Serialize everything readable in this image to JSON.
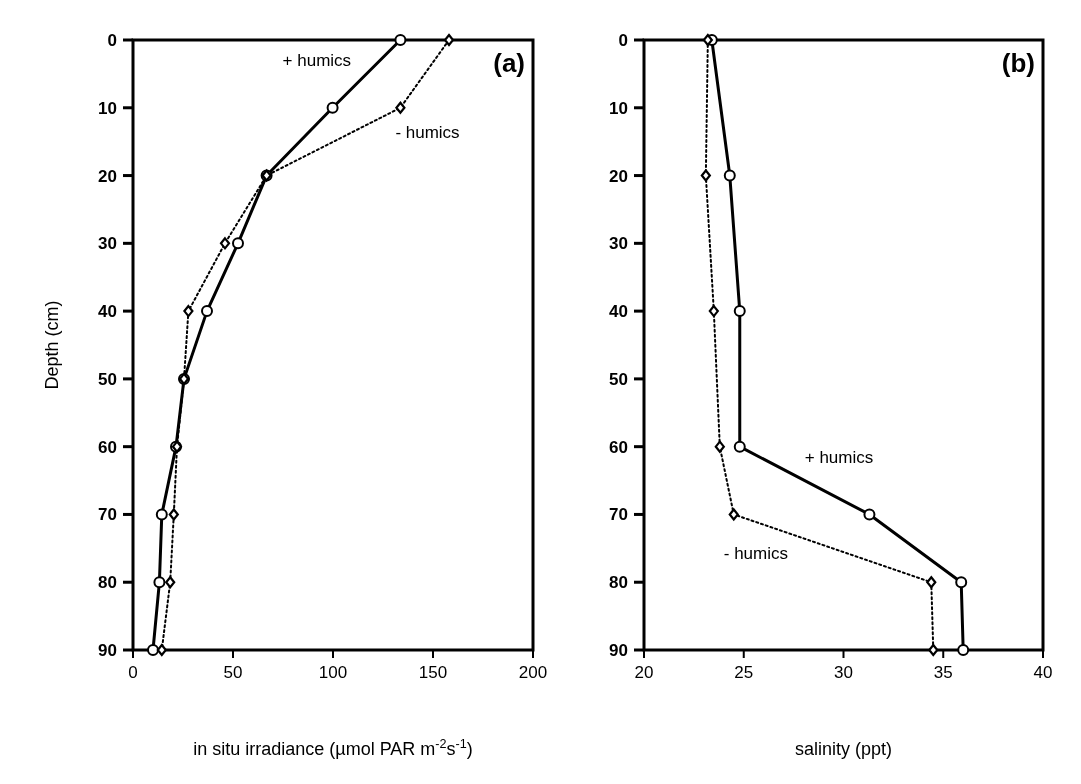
{
  "chart_data": [
    {
      "type": "line",
      "title": "(a)",
      "xlabel": "in situ irradiance (µmol PAR m$^{-2}$s$^{-1}$)",
      "ylabel": "Depth (cm)",
      "xlim": [
        0,
        200
      ],
      "xticks": [
        0,
        50,
        100,
        150,
        200
      ],
      "ylim": [
        90,
        0
      ],
      "yticks": [
        0,
        10,
        20,
        30,
        40,
        50,
        60,
        70,
        80,
        90
      ],
      "series": [
        {
          "name": "+ humics",
          "color": "#000000",
          "marker": "circle",
          "line_style": "solid",
          "x": [
            133.7,
            99.8,
            66.8,
            52.5,
            37,
            25.5,
            21.5,
            14.4,
            13.2,
            10
          ],
          "values": [
            0,
            10,
            20,
            30,
            40,
            50,
            60,
            70,
            80,
            90
          ]
        },
        {
          "name": "- humics",
          "color": "#000000",
          "marker": "diamond",
          "line_style": "dotted",
          "x": [
            158,
            133.7,
            66.8,
            46,
            27.7,
            25.5,
            22,
            20.4,
            18.6,
            14.4
          ],
          "values": [
            0,
            10,
            20,
            30,
            40,
            50,
            60,
            70,
            80,
            90
          ]
        }
      ]
    },
    {
      "type": "line",
      "title": "(b)",
      "xlabel": "salinity (ppt)",
      "xlim": [
        20,
        40
      ],
      "xticks": [
        20,
        25,
        30,
        35,
        40
      ],
      "ylim": [
        90,
        0
      ],
      "yticks": [
        0,
        10,
        20,
        30,
        40,
        50,
        60,
        70,
        80,
        90
      ],
      "series": [
        {
          "name": "+ humics",
          "color": "#000000",
          "marker": "circle",
          "line_style": "solid",
          "x": [
            23.4,
            24.3,
            24.8,
            24.8,
            31.3,
            35.9,
            36.0
          ],
          "values": [
            0,
            20,
            40,
            60,
            70,
            80,
            90
          ]
        },
        {
          "name": "- humics",
          "color": "#000000",
          "marker": "diamond",
          "line_style": "dotted",
          "x": [
            23.2,
            23.1,
            23.5,
            23.8,
            24.5,
            34.4,
            34.5
          ],
          "values": [
            0,
            20,
            40,
            60,
            70,
            80,
            90
          ]
        }
      ]
    }
  ]
}
